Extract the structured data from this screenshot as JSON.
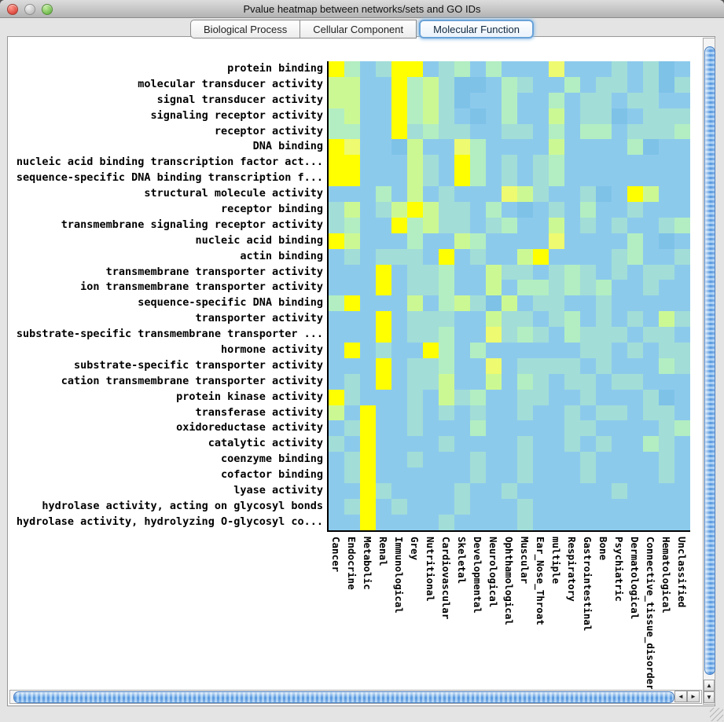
{
  "window": {
    "title": "Pvalue heatmap between networks/sets and GO IDs"
  },
  "tabs": [
    {
      "label": "Biological Process",
      "selected": false
    },
    {
      "label": "Cellular Component",
      "selected": false
    },
    {
      "label": "Molecular Function",
      "selected": true
    }
  ],
  "heatmap": {
    "palette": {
      "B": "#8ccaec",
      "D": "#7ec2e8",
      "T": "#a2ddd8",
      "G": "#b2eec2",
      "P": "#ccf894",
      "L": "#eefa70",
      "Y": "#ffff00"
    },
    "palette_legend": {
      "B": "base light blue (high p-value)",
      "D": "slightly darker blue",
      "T": "pale teal",
      "G": "mint green",
      "P": "pale yellow-green",
      "L": "pale yellow",
      "Y": "bright yellow (low p-value)"
    },
    "columns": [
      "Cancer",
      "Endocrine",
      "Metabolic",
      "Renal",
      "Immunological",
      "Grey",
      "Nutritional",
      "Cardiovascular",
      "Skeletal",
      "Developmental",
      "Neurological",
      "Ophthamological",
      "Muscular",
      "Ear_Nose_Throat",
      "multiple",
      "Respiratory",
      "Gastrointestinal",
      "Bone",
      "Psychiatric",
      "Dermatological",
      "Connective_tissue_disorder",
      "Hematological",
      "Unclassified"
    ],
    "rows": [
      {
        "label": "protein binding",
        "cells": "YGBTYYBTGBGBBBLBBBTBTDB"
      },
      {
        "label": "molecular transducer activity",
        "cells": "PPBBYGPTDDBGTBBGBTTBTDT"
      },
      {
        "label": "signal transducer activity",
        "cells": "PPBBYGPTDBBGBBGBTTBTTBB"
      },
      {
        "label": "signaling receptor activity",
        "cells": "GPBBYGPTBDBGBBPBTTDBTTT"
      },
      {
        "label": "receptor activity",
        "cells": "GGBBYTGTTBBTTBGBGGBTTTG"
      },
      {
        "label": "DNA binding",
        "cells": "YLBBDPBBLGBBBBPBBBBGDBB"
      },
      {
        "label": "nucleic acid binding transcription factor act...",
        "cells": "YYBBBPTBYGBTBTGBBBBBBBB"
      },
      {
        "label": "sequence-specific DNA binding transcription f...",
        "cells": "YYBBBPTBYGBTBTGBBBBBBBB"
      },
      {
        "label": "structural molecule activity",
        "cells": "BBBGBPBTBBBLPTBBTDBYPBB"
      },
      {
        "label": "receptor binding",
        "cells": "TPBTPYPTTBGBDBTBGBBTBBB"
      },
      {
        "label": "transmembrane signaling receptor activity",
        "cells": "TGBBYGPTTBTGBBPBTBTBBTG"
      },
      {
        "label": "nucleic acid binding",
        "cells": "YPBBBGBBPGBBBBLBBBBGBDB"
      },
      {
        "label": "actin binding",
        "cells": "BTBTTTBYBTBBPYBBBBTGBBT"
      },
      {
        "label": "transmembrane transporter activity",
        "cells": "BBBYBTTGBBPTTBTGTBTBTTB"
      },
      {
        "label": "ion transmembrane transporter activity",
        "cells": "BBBYBTTGBBPBGGTGTGBBTBB"
      },
      {
        "label": "sequence-specific DNA binding",
        "cells": "GYBBBPBGPTDPBTTBBTBBBBB"
      },
      {
        "label": "transporter activity",
        "cells": "BBBYBTTTBBPTTBTGBTBTBPT"
      },
      {
        "label": "substrate-specific transmembrane transporter ...",
        "cells": "BBBYBTTGBBLTGTBGTTTBTTB"
      },
      {
        "label": "hormone activity",
        "cells": "BYBTBBYGBGBBBBBBTTBTBTT"
      },
      {
        "label": "substrate-specific transporter activity",
        "cells": "BBBYBTTGBBLBTTTTBTBBBGT"
      },
      {
        "label": "cation transmembrane transporter activity",
        "cells": "BTBYBTTPBBPBGTBTTBTTBBB"
      },
      {
        "label": "protein kinase activity",
        "cells": "YTBBBTBPTGBBTTBBTBBBTDB"
      },
      {
        "label": "transferase activity",
        "cells": "PBYBBTBTBTBBTBBTBTTBTTB"
      },
      {
        "label": "oxidoreductase activity",
        "cells": "BTYBBTBBBGBBBBBTTBBBBTG"
      },
      {
        "label": "catalytic activity",
        "cells": "TBYBBBBTBBBBTBBTBTBBGTB"
      },
      {
        "label": "coenzyme binding",
        "cells": "BTYBBTBBBTBBTBBBTBBBBTB"
      },
      {
        "label": "cofactor binding",
        "cells": "BTYBBBBBBTBBTBBBTBBBBTB"
      },
      {
        "label": "lyase activity",
        "cells": "BBYTBBBBTBBTBBBBBBTBBBB"
      },
      {
        "label": "hydrolase activity, acting on glycosyl bonds",
        "cells": "BTYBTBBBTBBBTBBBBBBBBBB"
      },
      {
        "label": "hydrolase activity, hydrolyzing O-glycosyl co...",
        "cells": "BBYBBBBTBBBBTBBBBBBBBBB"
      }
    ]
  },
  "scrollbar_icons": {
    "up_arrow": "▲",
    "down_arrow": "▼",
    "left_arrow": "◄",
    "right_arrow": "►"
  }
}
